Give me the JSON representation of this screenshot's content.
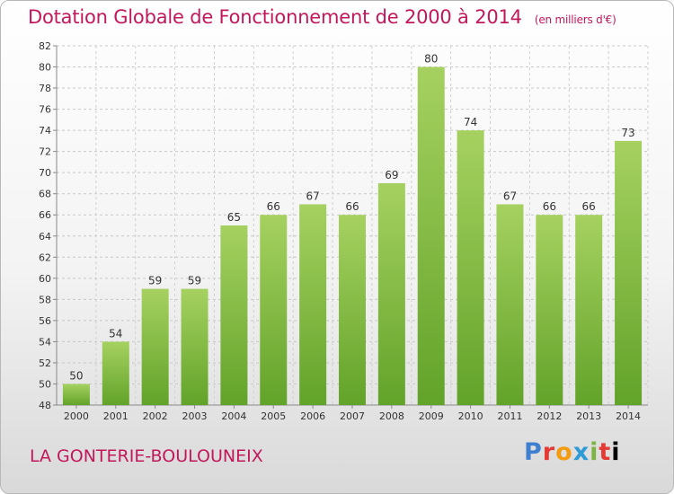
{
  "title": "Dotation Globale de Fonctionnement de 2000 à 2014",
  "unit_note": "(en milliers d'€)",
  "town": "LA GONTERIE-BOULOUNEIX",
  "logo": "Proxiti",
  "colors": {
    "bar_top": "#a6d160",
    "bar_bottom": "#62a32a",
    "title": "#c2185b"
  },
  "chart_data": {
    "type": "bar",
    "title": "Dotation Globale de Fonctionnement de 2000 à 2014",
    "subtitle": "(en milliers d'€)",
    "categories": [
      "2000",
      "2001",
      "2002",
      "2003",
      "2004",
      "2005",
      "2006",
      "2007",
      "2008",
      "2009",
      "2010",
      "2011",
      "2012",
      "2013",
      "2014"
    ],
    "values": [
      50,
      54,
      59,
      59,
      65,
      66,
      67,
      66,
      69,
      80,
      74,
      67,
      66,
      66,
      73
    ],
    "ylim": [
      48,
      82
    ],
    "yticks": [
      48,
      50,
      52,
      54,
      56,
      58,
      60,
      62,
      64,
      66,
      68,
      70,
      72,
      74,
      76,
      78,
      80,
      82
    ],
    "grid": true
  }
}
